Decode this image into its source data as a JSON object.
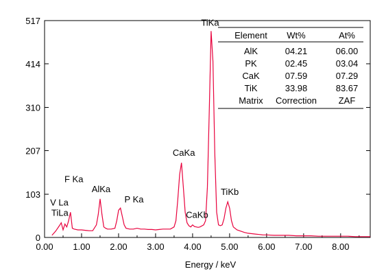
{
  "chart_data": {
    "type": "line",
    "xlabel": "Energy / keV",
    "ylabel": "",
    "xlim": [
      0,
      8.8
    ],
    "ylim": [
      0,
      517
    ],
    "x_ticks": [
      "0.00",
      "1.00",
      "2.00",
      "3.00",
      "4.00",
      "5.00",
      "6.00",
      "7.00",
      "8.00"
    ],
    "y_ticks": [
      "0",
      "103",
      "207",
      "310",
      "414",
      "517"
    ],
    "line_color": "#e8003c",
    "peaks": [
      {
        "label": "TiLa",
        "energy": 0.45,
        "counts": 35
      },
      {
        "label": "V La",
        "energy": 0.51,
        "counts": 30
      },
      {
        "label": "F Ka",
        "energy": 0.68,
        "counts": 60
      },
      {
        "label": "AlKa",
        "energy": 1.49,
        "counts": 92
      },
      {
        "label": "P Ka",
        "energy": 2.01,
        "counts": 70
      },
      {
        "label": "CaKa",
        "energy": 3.69,
        "counts": 178
      },
      {
        "label": "CaKb",
        "energy": 4.01,
        "counts": 30
      },
      {
        "label": "TiKa",
        "energy": 4.51,
        "counts": 492
      },
      {
        "label": "TiKb",
        "energy": 4.93,
        "counts": 85
      }
    ],
    "spectrum": {
      "x": [
        0.2,
        0.3,
        0.4,
        0.45,
        0.5,
        0.55,
        0.6,
        0.65,
        0.7,
        0.75,
        0.8,
        0.9,
        1.0,
        1.1,
        1.2,
        1.3,
        1.4,
        1.45,
        1.5,
        1.55,
        1.6,
        1.65,
        1.7,
        1.8,
        1.9,
        1.95,
        2.0,
        2.05,
        2.1,
        2.15,
        2.2,
        2.3,
        2.4,
        2.5,
        2.6,
        2.7,
        2.8,
        2.9,
        3.0,
        3.1,
        3.2,
        3.3,
        3.4,
        3.5,
        3.55,
        3.6,
        3.65,
        3.7,
        3.75,
        3.8,
        3.85,
        3.9,
        3.95,
        4.0,
        4.05,
        4.1,
        4.15,
        4.2,
        4.3,
        4.35,
        4.4,
        4.45,
        4.5,
        4.55,
        4.6,
        4.65,
        4.7,
        4.75,
        4.8,
        4.85,
        4.9,
        4.95,
        5.0,
        5.05,
        5.1,
        5.2,
        5.3,
        5.4,
        5.5,
        5.6,
        5.7,
        5.8,
        5.9,
        6.0,
        6.2,
        6.4,
        6.6,
        6.8,
        7.0,
        7.2,
        7.4,
        7.6,
        7.8,
        8.0,
        8.2,
        8.4,
        8.6,
        8.8
      ],
      "y": [
        5,
        15,
        28,
        35,
        18,
        32,
        25,
        40,
        60,
        22,
        20,
        18,
        18,
        17,
        16,
        16,
        30,
        55,
        92,
        55,
        25,
        22,
        20,
        20,
        22,
        40,
        65,
        70,
        50,
        30,
        22,
        20,
        20,
        22,
        20,
        20,
        19,
        19,
        18,
        19,
        20,
        20,
        20,
        25,
        40,
        90,
        150,
        178,
        120,
        60,
        35,
        28,
        25,
        30,
        26,
        25,
        24,
        25,
        30,
        40,
        120,
        300,
        492,
        420,
        200,
        60,
        30,
        28,
        30,
        45,
        70,
        85,
        70,
        40,
        25,
        18,
        15,
        12,
        10,
        9,
        8,
        7,
        6,
        6,
        5,
        5,
        5,
        4,
        4,
        4,
        3,
        3,
        3,
        3,
        3,
        2,
        2,
        2
      ]
    },
    "table": {
      "headers": [
        "Element",
        "Wt%",
        "At%"
      ],
      "rows": [
        [
          "AlK",
          "04.21",
          "06.00"
        ],
        [
          "PK",
          "02.45",
          "03.04"
        ],
        [
          "CaK",
          "07.59",
          "07.29"
        ],
        [
          "TiK",
          "33.98",
          "83.67"
        ],
        [
          "Matrix",
          "Correction",
          "ZAF"
        ]
      ]
    }
  }
}
